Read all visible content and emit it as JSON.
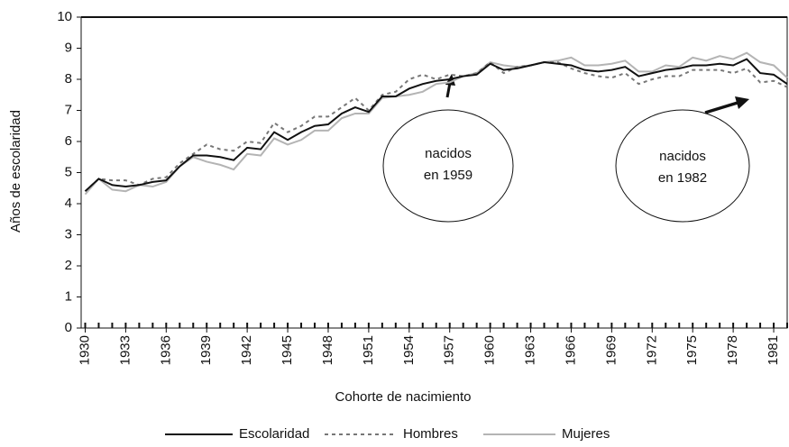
{
  "chart_data": {
    "type": "line",
    "x_label": "Cohorte de nacimiento",
    "y_label": "Años de escolaridad",
    "x": [
      1930,
      1931,
      1932,
      1933,
      1934,
      1935,
      1936,
      1937,
      1938,
      1939,
      1940,
      1941,
      1942,
      1943,
      1944,
      1945,
      1946,
      1947,
      1948,
      1949,
      1950,
      1951,
      1952,
      1953,
      1954,
      1955,
      1956,
      1957,
      1958,
      1959,
      1960,
      1961,
      1962,
      1963,
      1964,
      1965,
      1966,
      1967,
      1968,
      1969,
      1970,
      1971,
      1972,
      1973,
      1974,
      1975,
      1976,
      1977,
      1978,
      1979,
      1980,
      1981,
      1982
    ],
    "series": [
      {
        "name": "Escolaridad",
        "color": "#111111",
        "dash": "solid",
        "values": [
          4.4,
          4.8,
          4.6,
          4.55,
          4.6,
          4.7,
          4.75,
          5.2,
          5.55,
          5.55,
          5.5,
          5.4,
          5.8,
          5.75,
          6.3,
          6.05,
          6.3,
          6.5,
          6.55,
          6.9,
          7.1,
          6.95,
          7.45,
          7.45,
          7.7,
          7.85,
          7.95,
          8.0,
          8.1,
          8.15,
          8.5,
          8.3,
          8.35,
          8.45,
          8.55,
          8.5,
          8.45,
          8.3,
          8.25,
          8.3,
          8.4,
          8.1,
          8.2,
          8.3,
          8.35,
          8.45,
          8.45,
          8.5,
          8.45,
          8.65,
          8.2,
          8.15,
          7.85
        ]
      },
      {
        "name": "Hombres",
        "color": "#777777",
        "dash": "dashed",
        "values": [
          4.4,
          4.8,
          4.75,
          4.75,
          4.6,
          4.8,
          4.85,
          5.3,
          5.6,
          5.9,
          5.75,
          5.7,
          6.0,
          5.95,
          6.6,
          6.3,
          6.5,
          6.8,
          6.8,
          7.1,
          7.4,
          7.0,
          7.5,
          7.6,
          8.0,
          8.15,
          8.0,
          8.15,
          8.1,
          8.2,
          8.55,
          8.2,
          8.4,
          8.45,
          8.55,
          8.55,
          8.35,
          8.2,
          8.1,
          8.05,
          8.2,
          7.85,
          8.0,
          8.1,
          8.1,
          8.3,
          8.3,
          8.3,
          8.2,
          8.35,
          7.9,
          7.95,
          7.75
        ]
      },
      {
        "name": "Mujeres",
        "color": "#b4b4b4",
        "dash": "solid",
        "values": [
          4.3,
          4.8,
          4.45,
          4.4,
          4.6,
          4.55,
          4.7,
          5.2,
          5.5,
          5.35,
          5.25,
          5.1,
          5.6,
          5.55,
          6.1,
          5.9,
          6.05,
          6.35,
          6.35,
          6.75,
          6.9,
          6.9,
          7.4,
          7.45,
          7.5,
          7.6,
          7.85,
          7.9,
          8.1,
          8.2,
          8.55,
          8.45,
          8.4,
          8.45,
          8.55,
          8.6,
          8.7,
          8.45,
          8.45,
          8.5,
          8.6,
          8.25,
          8.25,
          8.45,
          8.4,
          8.7,
          8.6,
          8.75,
          8.65,
          8.85,
          8.55,
          8.45,
          8.05
        ]
      }
    ],
    "xlim": [
      1929.7,
      1982
    ],
    "xticks": [
      1930,
      1933,
      1936,
      1939,
      1942,
      1945,
      1948,
      1951,
      1954,
      1957,
      1960,
      1963,
      1966,
      1969,
      1972,
      1975,
      1978,
      1981
    ],
    "ylim": [
      0,
      10
    ],
    "yticks": [
      0,
      1,
      2,
      3,
      4,
      5,
      6,
      7,
      8,
      9,
      10
    ],
    "grid": false,
    "legend": "bottom",
    "annotations": [
      [
        "nacidos",
        "en 1959"
      ],
      [
        "nacidos",
        "en 1982"
      ]
    ]
  }
}
